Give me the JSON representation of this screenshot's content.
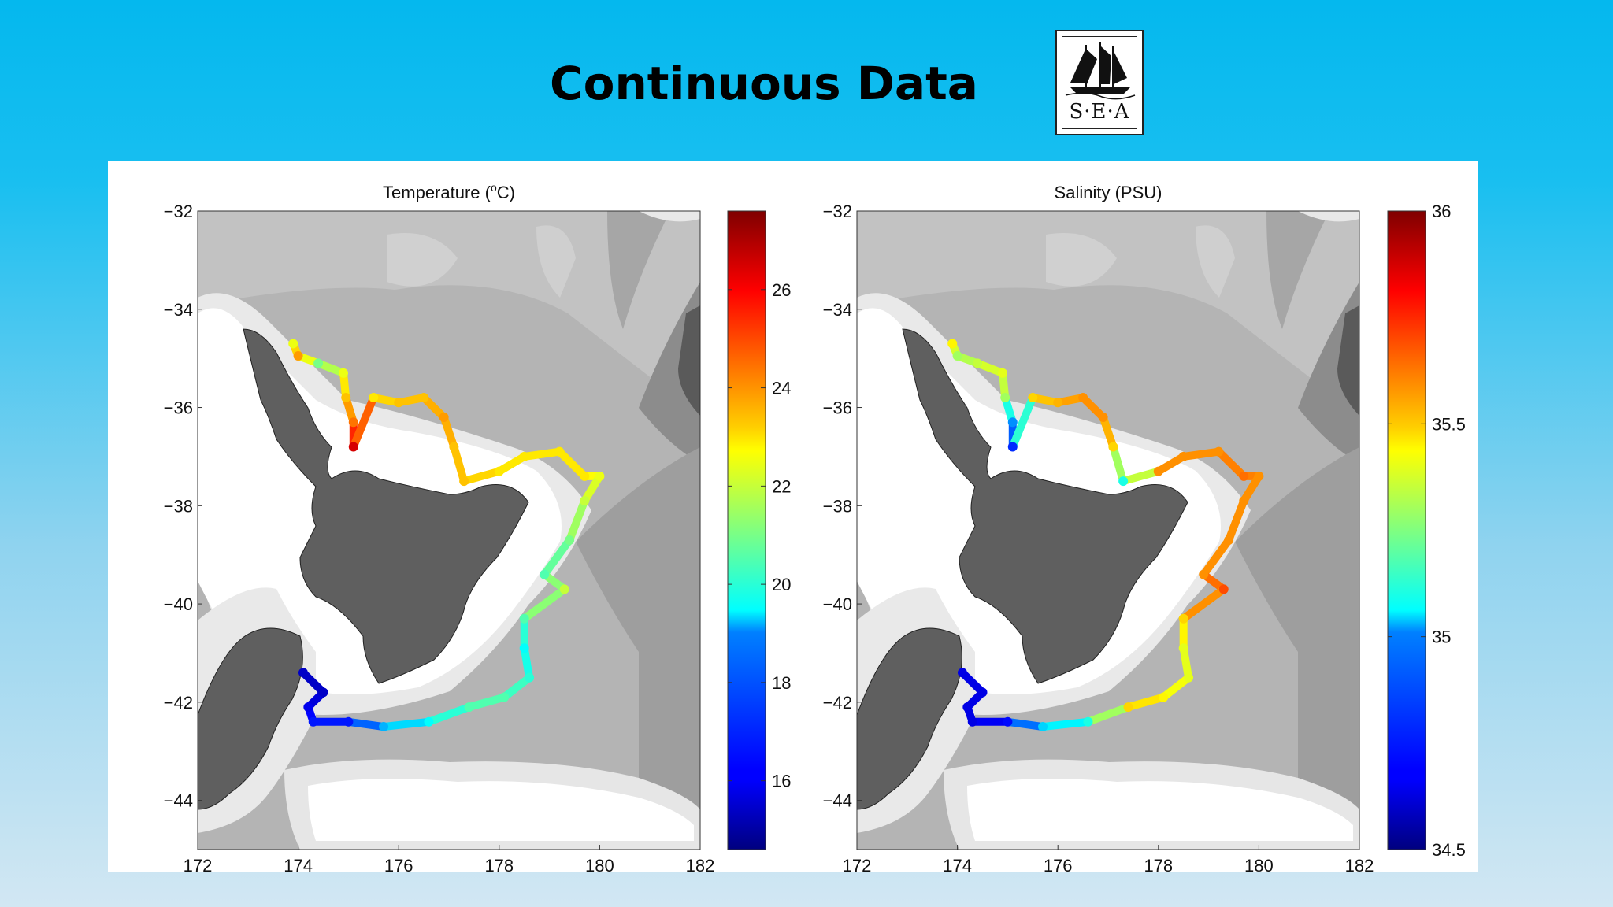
{
  "slide": {
    "title": "Continuous Data",
    "logo_text": "S·E·A",
    "logo_icon": "sailing-ship-icon"
  },
  "chart_data": [
    {
      "type": "scatter",
      "title": "Temperature (°C)",
      "title_parts": {
        "main": "Temperature (",
        "superscript": "o",
        "unit": "C)"
      },
      "xlabel": "",
      "ylabel": "",
      "xlim": [
        172,
        182
      ],
      "ylim": [
        -45,
        -32
      ],
      "xticks": [
        172,
        174,
        176,
        178,
        180,
        182
      ],
      "yticks": [
        -32,
        -34,
        -36,
        -38,
        -40,
        -42,
        -44
      ],
      "colorbar": {
        "range": [
          14.6,
          27.6
        ],
        "ticks": [
          16,
          18,
          20,
          22,
          24,
          26
        ],
        "colormap": "jet"
      },
      "grid": false,
      "background": "grayscale bathymetry with New Zealand coastline",
      "points": [
        {
          "lon": 173.9,
          "lat": -34.7,
          "value": 22.5
        },
        {
          "lon": 174.0,
          "lat": -34.95,
          "value": 24.0
        },
        {
          "lon": 174.4,
          "lat": -35.1,
          "value": 21.0
        },
        {
          "lon": 174.9,
          "lat": -35.3,
          "value": 22.5
        },
        {
          "lon": 174.95,
          "lat": -35.8,
          "value": 23.5
        },
        {
          "lon": 175.1,
          "lat": -36.3,
          "value": 24.5
        },
        {
          "lon": 175.1,
          "lat": -36.8,
          "value": 26.5
        },
        {
          "lon": 175.5,
          "lat": -35.8,
          "value": 23.0
        },
        {
          "lon": 176.0,
          "lat": -35.9,
          "value": 23.5
        },
        {
          "lon": 176.5,
          "lat": -35.8,
          "value": 23.5
        },
        {
          "lon": 176.9,
          "lat": -36.2,
          "value": 24.0
        },
        {
          "lon": 177.1,
          "lat": -36.8,
          "value": 23.5
        },
        {
          "lon": 177.3,
          "lat": -37.5,
          "value": 23.5
        },
        {
          "lon": 178.0,
          "lat": -37.3,
          "value": 23.0
        },
        {
          "lon": 178.5,
          "lat": -37.0,
          "value": 23.0
        },
        {
          "lon": 179.2,
          "lat": -36.9,
          "value": 23.0
        },
        {
          "lon": 179.7,
          "lat": -37.4,
          "value": 23.0
        },
        {
          "lon": 180.0,
          "lat": -37.4,
          "value": 22.5
        },
        {
          "lon": 179.7,
          "lat": -37.9,
          "value": 22.0
        },
        {
          "lon": 179.4,
          "lat": -38.7,
          "value": 21.0
        },
        {
          "lon": 178.9,
          "lat": -39.4,
          "value": 20.5
        },
        {
          "lon": 179.3,
          "lat": -39.7,
          "value": 22.0
        },
        {
          "lon": 178.5,
          "lat": -40.3,
          "value": 20.5
        },
        {
          "lon": 178.5,
          "lat": -40.9,
          "value": 19.5
        },
        {
          "lon": 178.6,
          "lat": -41.5,
          "value": 20.0
        },
        {
          "lon": 178.1,
          "lat": -41.9,
          "value": 20.5
        },
        {
          "lon": 177.4,
          "lat": -42.1,
          "value": 20.5
        },
        {
          "lon": 176.6,
          "lat": -42.4,
          "value": 19.5
        },
        {
          "lon": 175.7,
          "lat": -42.5,
          "value": 18.5
        },
        {
          "lon": 175.0,
          "lat": -42.4,
          "value": 16.5
        },
        {
          "lon": 174.3,
          "lat": -42.4,
          "value": 16.5
        },
        {
          "lon": 174.2,
          "lat": -42.1,
          "value": 16.0
        },
        {
          "lon": 174.5,
          "lat": -41.8,
          "value": 15.5
        },
        {
          "lon": 174.1,
          "lat": -41.4,
          "value": 15.5
        }
      ]
    },
    {
      "type": "scatter",
      "title": "Salinity (PSU)",
      "xlabel": "",
      "ylabel": "",
      "xlim": [
        172,
        182
      ],
      "ylim": [
        -45,
        -32
      ],
      "xticks": [
        172,
        174,
        176,
        178,
        180,
        182
      ],
      "yticks": [
        -32,
        -34,
        -36,
        -38,
        -40,
        -42,
        -44
      ],
      "colorbar": {
        "range": [
          34.5,
          36
        ],
        "ticks": [
          35,
          35.5,
          36,
          34.5
        ],
        "tick_labels": [
          "35",
          "35.5",
          "36",
          "34.5"
        ],
        "colormap": "jet"
      },
      "grid": false,
      "background": "grayscale bathymetry with New Zealand coastline",
      "points": [
        {
          "lon": 173.9,
          "lat": -34.7,
          "value": 35.45
        },
        {
          "lon": 174.0,
          "lat": -34.95,
          "value": 35.3
        },
        {
          "lon": 174.4,
          "lat": -35.1,
          "value": 35.35
        },
        {
          "lon": 174.9,
          "lat": -35.3,
          "value": 35.4
        },
        {
          "lon": 174.95,
          "lat": -35.8,
          "value": 35.3
        },
        {
          "lon": 175.1,
          "lat": -36.3,
          "value": 34.9
        },
        {
          "lon": 175.1,
          "lat": -36.8,
          "value": 34.75
        },
        {
          "lon": 175.5,
          "lat": -35.8,
          "value": 35.5
        },
        {
          "lon": 176.0,
          "lat": -35.9,
          "value": 35.55
        },
        {
          "lon": 176.5,
          "lat": -35.8,
          "value": 35.6
        },
        {
          "lon": 176.9,
          "lat": -36.2,
          "value": 35.6
        },
        {
          "lon": 177.1,
          "lat": -36.8,
          "value": 35.5
        },
        {
          "lon": 177.3,
          "lat": -37.5,
          "value": 35.1
        },
        {
          "lon": 178.0,
          "lat": -37.3,
          "value": 35.6
        },
        {
          "lon": 178.5,
          "lat": -37.0,
          "value": 35.6
        },
        {
          "lon": 179.2,
          "lat": -36.9,
          "value": 35.6
        },
        {
          "lon": 179.7,
          "lat": -37.4,
          "value": 35.65
        },
        {
          "lon": 180.0,
          "lat": -37.4,
          "value": 35.6
        },
        {
          "lon": 179.7,
          "lat": -37.9,
          "value": 35.6
        },
        {
          "lon": 179.4,
          "lat": -38.7,
          "value": 35.6
        },
        {
          "lon": 178.9,
          "lat": -39.4,
          "value": 35.6
        },
        {
          "lon": 179.3,
          "lat": -39.7,
          "value": 35.7
        },
        {
          "lon": 178.5,
          "lat": -40.3,
          "value": 35.5
        },
        {
          "lon": 178.5,
          "lat": -40.9,
          "value": 35.4
        },
        {
          "lon": 178.6,
          "lat": -41.5,
          "value": 35.4
        },
        {
          "lon": 178.1,
          "lat": -41.9,
          "value": 35.45
        },
        {
          "lon": 177.4,
          "lat": -42.1,
          "value": 35.5
        },
        {
          "lon": 176.6,
          "lat": -42.4,
          "value": 35.1
        },
        {
          "lon": 175.7,
          "lat": -42.5,
          "value": 35.0
        },
        {
          "lon": 175.0,
          "lat": -42.4,
          "value": 34.7
        },
        {
          "lon": 174.3,
          "lat": -42.4,
          "value": 34.65
        },
        {
          "lon": 174.2,
          "lat": -42.1,
          "value": 34.65
        },
        {
          "lon": 174.5,
          "lat": -41.8,
          "value": 34.65
        },
        {
          "lon": 174.1,
          "lat": -41.4,
          "value": 34.65
        }
      ]
    }
  ]
}
